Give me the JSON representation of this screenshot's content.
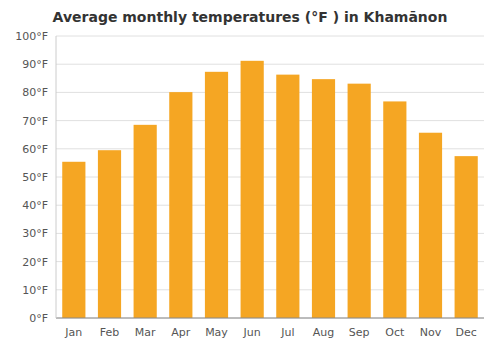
{
  "chart_data": {
    "type": "bar",
    "title": "Average monthly temperatures (°F ) in Khamānon",
    "categories": [
      "Jan",
      "Feb",
      "Mar",
      "Apr",
      "May",
      "Jun",
      "Jul",
      "Aug",
      "Sep",
      "Oct",
      "Nov",
      "Dec"
    ],
    "values": [
      55.4,
      59.5,
      68.5,
      80.1,
      87.3,
      91.2,
      86.3,
      84.7,
      83.1,
      76.8,
      65.7,
      57.4
    ],
    "color": "#F5A623",
    "ylim": [
      0,
      100
    ],
    "yticks": [
      {
        "value": 0,
        "label": "0°F"
      },
      {
        "value": 10,
        "label": "10°F"
      },
      {
        "value": 20,
        "label": "20°F"
      },
      {
        "value": 30,
        "label": "30°F"
      },
      {
        "value": 40,
        "label": "40°F"
      },
      {
        "value": 50,
        "label": "50°F"
      },
      {
        "value": 60,
        "label": "60°F"
      },
      {
        "value": 70,
        "label": "70°F"
      },
      {
        "value": 80,
        "label": "80°F"
      },
      {
        "value": 90,
        "label": "90°F"
      },
      {
        "value": 100,
        "label": "100°F"
      }
    ],
    "grid": true
  }
}
